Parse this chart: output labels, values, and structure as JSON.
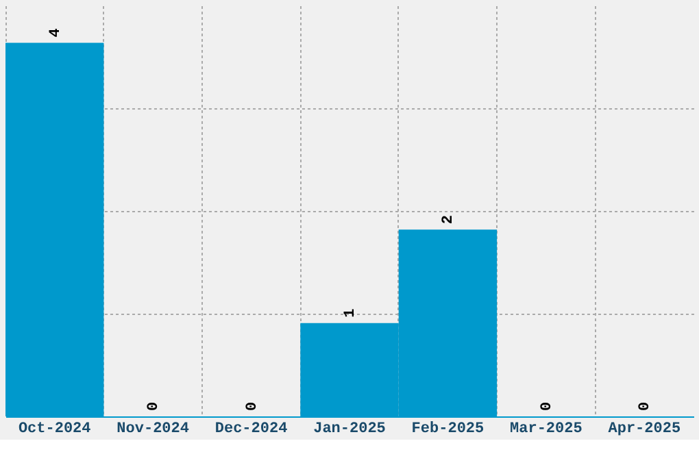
{
  "chart_data": {
    "type": "bar",
    "categories": [
      "Oct-2024",
      "Nov-2024",
      "Dec-2024",
      "Jan-2025",
      "Feb-2025",
      "Mar-2025",
      "Apr-2025"
    ],
    "values": [
      4,
      0,
      0,
      1,
      2,
      0,
      0
    ],
    "color": "#0099cc",
    "data_labels": true,
    "grid": true,
    "tick_labels": "x",
    "ylim": [
      0,
      4.4
    ],
    "yticks": [
      {
        "value": 1.1,
        "label": null
      },
      {
        "value": 2.2,
        "label": null
      },
      {
        "value": 3.3,
        "label": null
      }
    ]
  }
}
